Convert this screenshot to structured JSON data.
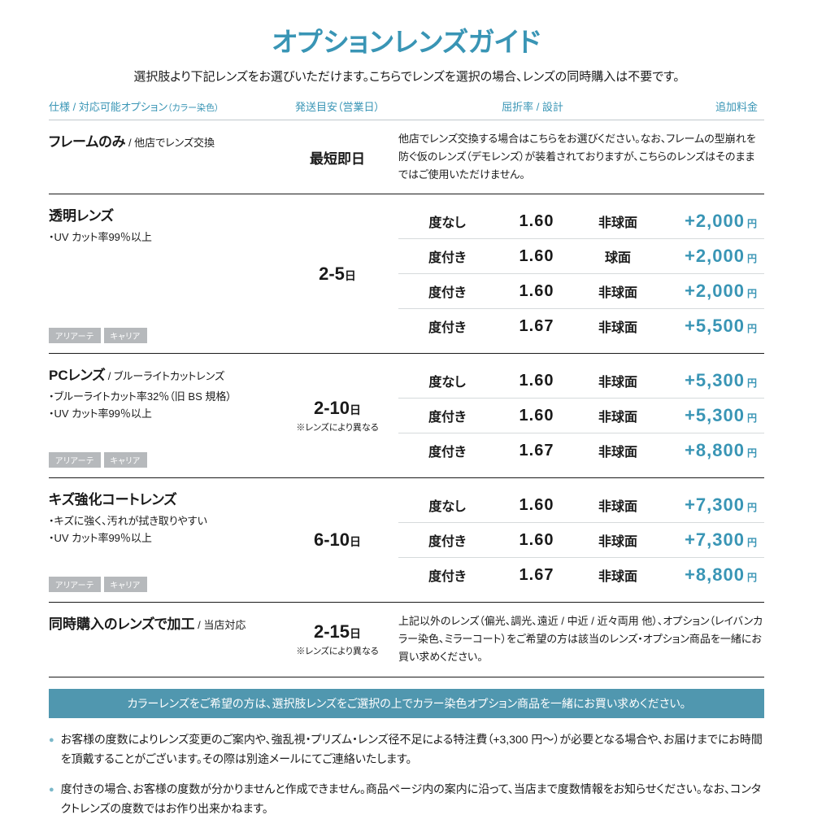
{
  "colors": {
    "accent": "#3995b5",
    "bannerBg": "#5097af",
    "accentLight": "#7bb8c9"
  },
  "title": "オプションレンズガイド",
  "subtitle": "選択肢より下記レンズをお選びいただけます。こちらでレンズを選択の場合、レンズの同時購入は不要です。",
  "headers": {
    "col1": "仕様 / 対応可能オプション",
    "col1small": "（カラー染色）",
    "col2": "発送目安（営業日）",
    "col3": "屈折率 / 設計",
    "col4": "追加料金"
  },
  "sections": [
    {
      "titleMain": "フレームのみ",
      "titleSub": " / 他店でレンズ交換",
      "bullets": [],
      "badges": [],
      "days": "最短即日",
      "daysNote": "",
      "desc": "他店でレンズ交換する場合はこちらをお選びください。なお、フレームの型崩れを防ぐ仮のレンズ（デモレンズ）が装着されておりますが、こちらのレンズはそのままではご使用いただけません。",
      "rows": []
    },
    {
      "titleMain": "透明レンズ",
      "titleSub": "",
      "bullets": [
        "・UV カット率99％以上"
      ],
      "badges": [
        "アリアーテ",
        "キャリア"
      ],
      "days": "2-5",
      "daysSuffix": "日",
      "daysNote": "",
      "rows": [
        {
          "c1": "度なし",
          "c2": "1.60",
          "c3": "非球面",
          "c4": "+2,000"
        },
        {
          "c1": "度付き",
          "c2": "1.60",
          "c3": "球面",
          "c4": "+2,000"
        },
        {
          "c1": "度付き",
          "c2": "1.60",
          "c3": "非球面",
          "c4": "+2,000"
        },
        {
          "c1": "度付き",
          "c2": "1.67",
          "c3": "非球面",
          "c4": "+5,500"
        }
      ]
    },
    {
      "titleMain": "PCレンズ",
      "titleSub": " / ブルーライトカットレンズ",
      "bullets": [
        "・ブルーライトカット率32％（旧 BS 規格）",
        "・UV カット率99％以上"
      ],
      "badges": [
        "アリアーテ",
        "キャリア"
      ],
      "days": "2-10",
      "daysSuffix": "日",
      "daysNote": "※レンズにより異なる",
      "rows": [
        {
          "c1": "度なし",
          "c2": "1.60",
          "c3": "非球面",
          "c4": "+5,300"
        },
        {
          "c1": "度付き",
          "c2": "1.60",
          "c3": "非球面",
          "c4": "+5,300"
        },
        {
          "c1": "度付き",
          "c2": "1.67",
          "c3": "非球面",
          "c4": "+8,800"
        }
      ]
    },
    {
      "titleMain": "キズ強化コートレンズ",
      "titleSub": "",
      "bullets": [
        "・キズに強く、汚れが拭き取りやすい",
        "・UV カット率99％以上"
      ],
      "badges": [
        "アリアーテ",
        "キャリア"
      ],
      "days": "6-10",
      "daysSuffix": "日",
      "daysNote": "",
      "rows": [
        {
          "c1": "度なし",
          "c2": "1.60",
          "c3": "非球面",
          "c4": "+7,300"
        },
        {
          "c1": "度付き",
          "c2": "1.60",
          "c3": "非球面",
          "c4": "+7,300"
        },
        {
          "c1": "度付き",
          "c2": "1.67",
          "c3": "非球面",
          "c4": "+8,800"
        }
      ]
    },
    {
      "titleMain": "同時購入のレンズで加工",
      "titleSub": " / 当店対応",
      "bullets": [],
      "badges": [],
      "days": "2-15",
      "daysSuffix": "日",
      "daysNote": "※レンズにより異なる",
      "desc": "上記以外のレンズ（偏光、調光、遠近 / 中近 / 近々両用 他）、オプション（レイバンカラー染色、ミラーコート）をご希望の方は該当のレンズ・オプション商品を一緒にお買い求めください。",
      "rows": []
    }
  ],
  "banner": "カラーレンズをご希望の方は、選択肢レンズをご選択の上でカラー染色オプション商品を一緒にお買い求めください。",
  "notes": [
    "お客様の度数によりレンズ変更のご案内や、強乱視・プリズム・レンズ径不足による特注費（+3,300 円～）が必要となる場合や、お届けまでにお時間を頂戴することがございます。その際は別途メールにてご連絡いたします。",
    "度付きの場合、お客様の度数が分かりませんと作成できません。商品ページ内の案内に沿って、当店まで度数情報をお知らせください。なお、コンタクトレンズの度数ではお作り出来かねます。"
  ],
  "yen": "円"
}
